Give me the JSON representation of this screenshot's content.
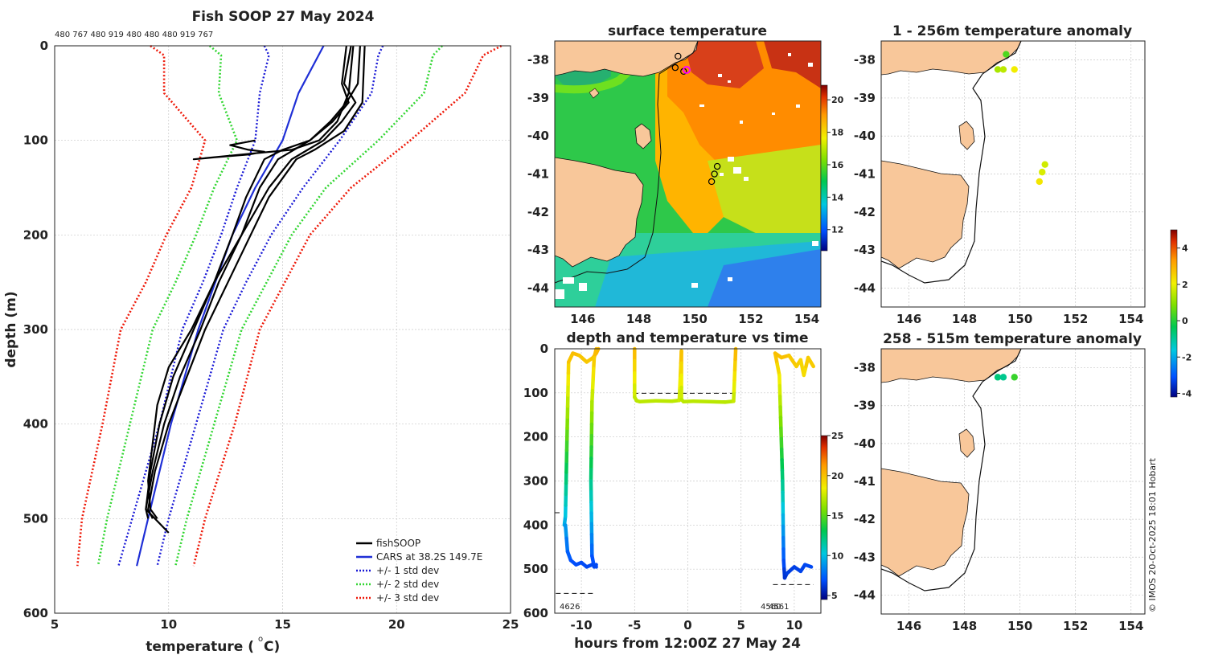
{
  "credit": "© IMOS 20-Oct-2025 18:01 Hobart",
  "colors": {
    "land": "#f8c79a",
    "obs": "#000000",
    "cars": "#1f2fd6",
    "std1": "#1a1ad6",
    "std2": "#33d633",
    "std3": "#ee1a0a"
  },
  "chart_data": [
    {
      "type": "line",
      "name": "profile",
      "title": "Fish SOOP 27 May 2024",
      "xlabel": "temperature (",
      "xlabel_sup": "o",
      "xlabel_end": " C)",
      "ylabel": "depth (m)",
      "xlim": [
        5,
        25
      ],
      "ylim": [
        600,
        0
      ],
      "xticks": [
        5,
        10,
        15,
        20,
        25
      ],
      "yticks": [
        0,
        100,
        200,
        300,
        400,
        500,
        600
      ],
      "probe_ids": "480 767 480 919 480 480 480 919 767",
      "legend": [
        "fishSOOP",
        "CARS at 38.2S 149.7E",
        "+/- 1 std dev",
        "+/- 2 std dev",
        "+/- 3 std dev"
      ],
      "series": [
        {
          "name": "CARS",
          "depth": [
            0,
            50,
            100,
            150,
            200,
            300,
            400,
            500,
            550
          ],
          "temp": [
            16.8,
            15.7,
            15.0,
            13.8,
            12.8,
            11.3,
            10.1,
            9.1,
            8.6
          ]
        },
        {
          "name": "std3_low",
          "depth": [
            0,
            10,
            50,
            100,
            150,
            200,
            250,
            300,
            400,
            500,
            550
          ],
          "temp": [
            9.2,
            9.8,
            9.8,
            11.6,
            11.0,
            9.9,
            9.0,
            7.9,
            7.1,
            6.2,
            6.0
          ]
        },
        {
          "name": "std2_low",
          "depth": [
            0,
            10,
            50,
            100,
            150,
            200,
            250,
            300,
            400,
            500,
            550
          ],
          "temp": [
            11.8,
            12.3,
            12.2,
            13.0,
            12.0,
            11.2,
            10.3,
            9.3,
            8.3,
            7.3,
            6.9
          ]
        },
        {
          "name": "std1_low",
          "depth": [
            0,
            10,
            50,
            100,
            150,
            200,
            250,
            300,
            400,
            500,
            550
          ],
          "temp": [
            14.2,
            14.4,
            14.0,
            13.8,
            13.0,
            12.3,
            11.5,
            10.6,
            9.6,
            8.4,
            7.8
          ]
        },
        {
          "name": "std1_high",
          "depth": [
            0,
            10,
            50,
            100,
            150,
            200,
            250,
            300,
            400,
            500,
            550
          ],
          "temp": [
            19.4,
            19.2,
            18.9,
            17.5,
            15.9,
            14.5,
            13.4,
            12.4,
            11.2,
            10.0,
            9.5
          ]
        },
        {
          "name": "std2_high",
          "depth": [
            0,
            10,
            50,
            100,
            150,
            200,
            250,
            300,
            400,
            500,
            550
          ],
          "temp": [
            22.0,
            21.6,
            21.2,
            19.2,
            16.9,
            15.4,
            14.3,
            13.2,
            12.0,
            10.8,
            10.3
          ]
        },
        {
          "name": "std3_high",
          "depth": [
            0,
            10,
            50,
            100,
            150,
            200,
            250,
            300,
            400,
            500,
            550
          ],
          "temp": [
            24.6,
            23.8,
            23.0,
            20.6,
            18.0,
            16.2,
            15.1,
            14.0,
            12.9,
            11.6,
            11.1
          ]
        },
        {
          "name": "obs1",
          "depth": [
            0,
            40,
            60,
            80,
            100,
            110,
            120,
            150,
            200,
            250,
            300,
            350,
            400,
            450,
            490,
            500,
            510,
            515
          ],
          "temp": [
            17.8,
            17.6,
            17.9,
            17.2,
            16.2,
            15.5,
            14.8,
            14.0,
            13.2,
            12.2,
            11.4,
            10.5,
            9.8,
            9.3,
            9.0,
            9.4,
            9.8,
            10.0
          ]
        },
        {
          "name": "obs2",
          "depth": [
            0,
            40,
            60,
            80,
            100,
            120,
            150,
            200,
            250,
            300,
            350,
            400,
            450,
            490,
            500
          ],
          "temp": [
            18.0,
            17.7,
            18.2,
            17.6,
            16.8,
            15.4,
            14.4,
            13.2,
            12.0,
            11.1,
            10.2,
            9.6,
            9.2,
            9.0,
            9.1
          ]
        },
        {
          "name": "obs3",
          "depth": [
            0,
            40,
            60,
            80,
            100,
            110,
            120,
            160,
            200,
            250,
            300,
            340,
            380,
            420,
            460,
            490,
            500
          ],
          "temp": [
            18.4,
            18.3,
            17.8,
            17.1,
            16.2,
            15.0,
            14.2,
            13.4,
            12.8,
            12.0,
            11.0,
            10.0,
            9.5,
            9.3,
            9.1,
            9.2,
            9.5
          ]
        },
        {
          "name": "obs4",
          "depth": [
            0,
            50,
            80,
            100,
            110,
            115,
            120,
            118,
            115,
            112,
            110,
            105,
            100
          ],
          "temp": [
            18.1,
            17.9,
            17.4,
            16.6,
            15.4,
            13.2,
            11.1,
            12.0,
            13.5,
            14.2,
            13.5,
            12.7,
            13.8
          ]
        },
        {
          "name": "obs5",
          "depth": [
            0,
            60,
            90,
            110,
            120,
            160,
            200,
            250,
            300,
            350,
            400,
            450,
            490,
            500
          ],
          "temp": [
            18.6,
            18.5,
            17.7,
            16.4,
            15.6,
            14.4,
            13.6,
            12.6,
            11.6,
            10.8,
            10.0,
            9.4,
            9.1,
            9.3
          ]
        }
      ]
    },
    {
      "type": "heatmap",
      "name": "sst_map",
      "title": "surface temperature",
      "xlim": [
        145,
        154.5
      ],
      "ylim": [
        -44.5,
        -37.5
      ],
      "xticks": [
        146,
        148,
        150,
        152,
        154
      ],
      "yticks": [
        -38,
        -39,
        -40,
        -41,
        -42,
        -43,
        -44
      ],
      "colorbar": {
        "min": 10.7,
        "max": 20.9,
        "ticks": [
          12,
          14,
          16,
          18,
          20
        ]
      },
      "markers": [
        {
          "lon": 149.6,
          "lat": -38.3
        },
        {
          "lon": 149.3,
          "lat": -38.2
        },
        {
          "lon": 149.4,
          "lat": -37.9
        },
        {
          "lon": 150.8,
          "lat": -40.8
        },
        {
          "lon": 150.7,
          "lat": -41.0
        },
        {
          "lon": 150.6,
          "lat": -41.2
        }
      ]
    },
    {
      "type": "scatter",
      "name": "depth_time",
      "title": "depth and temperature vs time",
      "xlabel": "hours from 12:00Z 27 May 24",
      "xlim": [
        -12.5,
        12.5
      ],
      "ylim": [
        600,
        0
      ],
      "xticks": [
        -10,
        -5,
        0,
        5,
        10
      ],
      "yticks": [
        0,
        100,
        200,
        300,
        400,
        500,
        600
      ],
      "colorbar": {
        "min": 4.5,
        "max": 25,
        "ticks": [
          5,
          10,
          15,
          20,
          25
        ]
      },
      "annotations": [
        "4626",
        "4560",
        "4561"
      ],
      "segments": [
        {
          "t": [
            -11.6,
            -11.5,
            -11.2,
            -10.8,
            -10.2,
            -9.5,
            -8.9,
            -8.6,
            -8.4
          ],
          "d": [
            400,
            380,
            30,
            10,
            15,
            30,
            20,
            10,
            0
          ]
        },
        {
          "t": [
            -8.6,
            -8.8,
            -9.0,
            -9.1,
            -9.0,
            -8.8,
            -8.6
          ],
          "d": [
            0,
            20,
            120,
            300,
            470,
            495,
            490
          ]
        },
        {
          "t": [
            -11.5,
            -11.3,
            -11.0,
            -10.5,
            -10.0,
            -9.5,
            -9.0,
            -8.6
          ],
          "d": [
            400,
            460,
            480,
            490,
            485,
            495,
            490,
            495
          ]
        },
        {
          "t": [
            -5.0,
            -5.0,
            -4.8,
            -4.5,
            -3.0,
            -1.5,
            -0.8,
            -0.6,
            -0.6,
            -0.4,
            0.5,
            2.0,
            3.5,
            4.3,
            4.5
          ],
          "d": [
            0,
            110,
            118,
            120,
            118,
            119,
            117,
            5,
            115,
            120,
            119,
            120,
            121,
            119,
            0
          ]
        },
        {
          "t": [
            8.2,
            8.6,
            8.9,
            9.0,
            9.1,
            9.3,
            10.0,
            10.6,
            11.0,
            11.6
          ],
          "d": [
            10,
            60,
            300,
            480,
            520,
            510,
            495,
            505,
            490,
            495
          ]
        },
        {
          "t": [
            8.2,
            8.8,
            9.5,
            10.2,
            10.6,
            10.9,
            11.3,
            11.8
          ],
          "d": [
            10,
            20,
            15,
            40,
            25,
            60,
            20,
            40
          ]
        }
      ]
    },
    {
      "type": "scatter",
      "name": "anomaly_1_256",
      "title": "1 - 256m temperature anomaly",
      "xlim": [
        145,
        154.5
      ],
      "ylim": [
        -44.5,
        -37.5
      ],
      "xticks": [
        146,
        148,
        150,
        152,
        154
      ],
      "yticks": [
        -38,
        -39,
        -40,
        -41,
        -42,
        -43,
        -44
      ],
      "points": [
        {
          "lon": 149.5,
          "lat": -37.85,
          "anomaly": 0.4
        },
        {
          "lon": 149.2,
          "lat": -38.25,
          "anomaly": 1.3
        },
        {
          "lon": 149.4,
          "lat": -38.25,
          "anomaly": 1.5
        },
        {
          "lon": 149.8,
          "lat": -38.25,
          "anomaly": 2.1
        },
        {
          "lon": 150.9,
          "lat": -40.75,
          "anomaly": 1.7
        },
        {
          "lon": 150.8,
          "lat": -40.95,
          "anomaly": 1.8
        },
        {
          "lon": 150.7,
          "lat": -41.2,
          "anomaly": 2.2
        }
      ]
    },
    {
      "type": "scatter",
      "name": "anomaly_258_515",
      "title": "258 - 515m temperature anomaly",
      "xlim": [
        145,
        154.5
      ],
      "ylim": [
        -44.5,
        -37.5
      ],
      "xticks": [
        146,
        148,
        150,
        152,
        154
      ],
      "yticks": [
        -38,
        -39,
        -40,
        -41,
        -42,
        -43,
        -44
      ],
      "colorbar": {
        "min": -4.2,
        "max": 5.0,
        "ticks": [
          4,
          2,
          0,
          -2,
          -4
        ]
      },
      "points": [
        {
          "lon": 149.2,
          "lat": -38.25,
          "anomaly": -0.7
        },
        {
          "lon": 149.4,
          "lat": -38.25,
          "anomaly": -0.9
        },
        {
          "lon": 149.8,
          "lat": -38.25,
          "anomaly": 0.2
        }
      ]
    }
  ]
}
